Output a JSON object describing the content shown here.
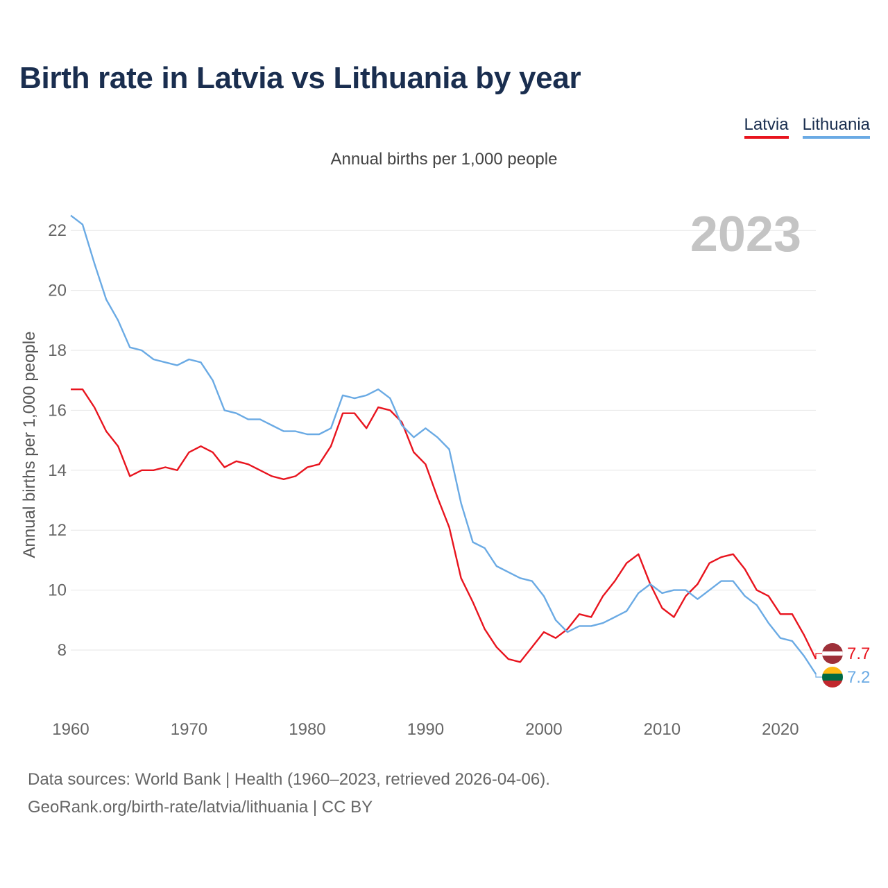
{
  "colors": {
    "latvia": "#e8141e",
    "lithuania": "#6aaae4",
    "title": "#1a2e4f",
    "grid": "#e6e6e6",
    "axis_text": "#666666",
    "year_label": "#c4c4c4"
  },
  "legend": {
    "latvia": "Latvia",
    "lithuania": "Lithuania"
  },
  "footer": {
    "line1": "Data sources: World Bank | Health (1960–2023, retrieved 2026-04-06).",
    "line2": "GeoRank.org/birth-rate/latvia/lithuania | CC BY"
  },
  "chart_data": {
    "type": "line",
    "title": "Birth rate in Latvia vs Lithuania by year",
    "subtitle": "Annual births per 1,000 people",
    "ylabel": "Annual births per 1,000 people",
    "xlabel": "",
    "year_label": "2023",
    "xlim": [
      1960,
      2023
    ],
    "ylim": [
      6,
      23
    ],
    "x_ticks": [
      1960,
      1970,
      1980,
      1990,
      2000,
      2010,
      2020
    ],
    "y_ticks": [
      8,
      10,
      12,
      14,
      16,
      18,
      20,
      22
    ],
    "x": [
      1960,
      1961,
      1962,
      1963,
      1964,
      1965,
      1966,
      1967,
      1968,
      1969,
      1970,
      1971,
      1972,
      1973,
      1974,
      1975,
      1976,
      1977,
      1978,
      1979,
      1980,
      1981,
      1982,
      1983,
      1984,
      1985,
      1986,
      1987,
      1988,
      1989,
      1990,
      1991,
      1992,
      1993,
      1994,
      1995,
      1996,
      1997,
      1998,
      1999,
      2000,
      2001,
      2002,
      2003,
      2004,
      2005,
      2006,
      2007,
      2008,
      2009,
      2010,
      2011,
      2012,
      2013,
      2014,
      2015,
      2016,
      2017,
      2018,
      2019,
      2020,
      2021,
      2022,
      2023
    ],
    "series": [
      {
        "name": "Latvia",
        "end_label": "7.7",
        "values": [
          16.7,
          16.7,
          16.1,
          15.3,
          14.8,
          13.8,
          14.0,
          14.0,
          14.1,
          14.0,
          14.6,
          14.8,
          14.6,
          14.1,
          14.3,
          14.2,
          14.0,
          13.8,
          13.7,
          13.8,
          14.1,
          14.2,
          14.8,
          15.9,
          15.9,
          15.4,
          16.1,
          16.0,
          15.6,
          14.6,
          14.2,
          13.1,
          12.1,
          10.4,
          9.6,
          8.7,
          8.1,
          7.7,
          7.6,
          8.1,
          8.6,
          8.4,
          8.7,
          9.2,
          9.1,
          9.8,
          10.3,
          10.9,
          11.2,
          10.2,
          9.4,
          9.1,
          9.8,
          10.2,
          10.9,
          11.1,
          11.2,
          10.7,
          10.0,
          9.8,
          9.2,
          9.2,
          8.5,
          7.7
        ]
      },
      {
        "name": "Lithuania",
        "end_label": "7.2",
        "values": [
          22.5,
          22.2,
          20.9,
          19.7,
          19.0,
          18.1,
          18.0,
          17.7,
          17.6,
          17.5,
          17.7,
          17.6,
          17.0,
          16.0,
          15.9,
          15.7,
          15.7,
          15.5,
          15.3,
          15.3,
          15.2,
          15.2,
          15.4,
          16.5,
          16.4,
          16.5,
          16.7,
          16.4,
          15.5,
          15.1,
          15.4,
          15.1,
          14.7,
          12.9,
          11.6,
          11.4,
          10.8,
          10.6,
          10.4,
          10.3,
          9.8,
          9.0,
          8.6,
          8.8,
          8.8,
          8.9,
          9.1,
          9.3,
          9.9,
          10.2,
          9.9,
          10.0,
          10.0,
          9.7,
          10.0,
          10.3,
          10.3,
          9.8,
          9.5,
          8.9,
          8.4,
          8.3,
          7.8,
          7.2
        ]
      }
    ]
  }
}
